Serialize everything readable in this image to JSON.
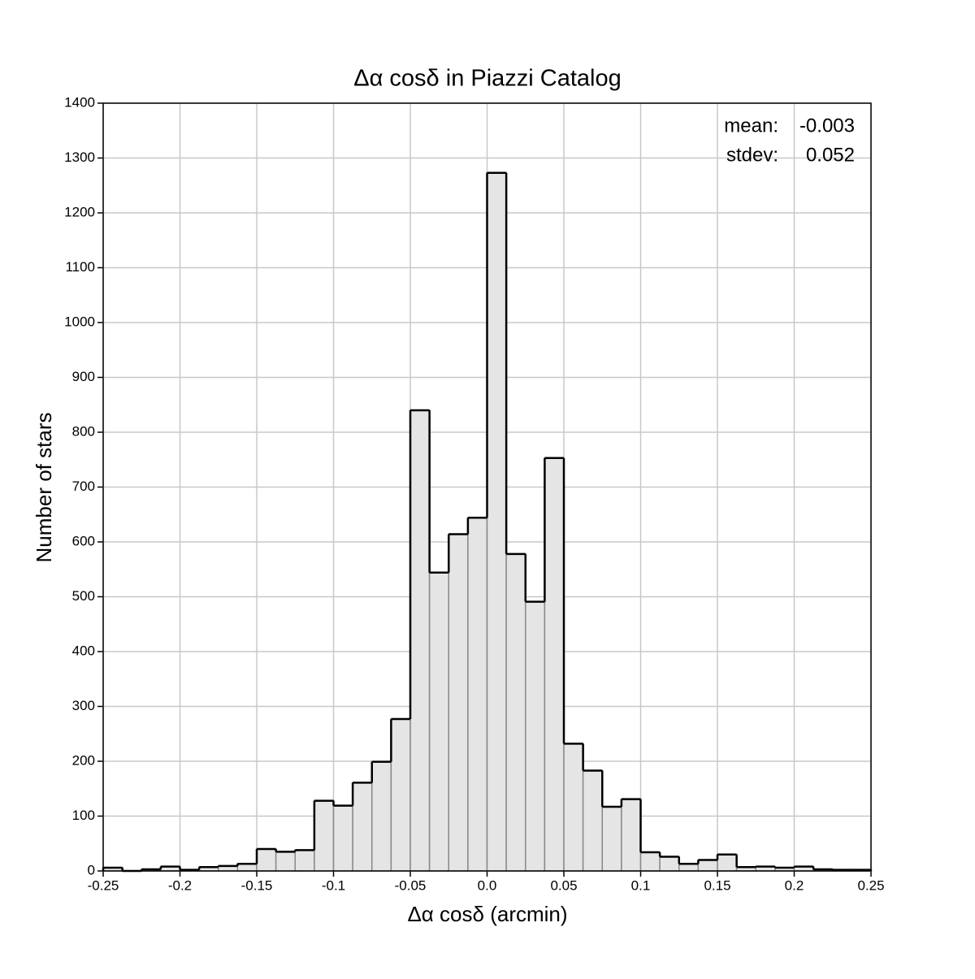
{
  "chart_data": {
    "type": "histogram",
    "title": "Δα cosδ in Piazzi Catalog",
    "x_label": "Δα cosδ (arcmin)",
    "y_label": "Number of stars",
    "bins": [
      -0.25,
      -0.2375,
      -0.225,
      -0.2125,
      -0.2,
      -0.1875,
      -0.175,
      -0.1625,
      -0.15,
      -0.1375,
      -0.125,
      -0.1125,
      -0.1,
      -0.0875,
      -0.075,
      -0.0625,
      -0.05,
      -0.0375,
      -0.025,
      -0.0125,
      0,
      0.0125,
      0.025,
      0.0375,
      0.05,
      0.0625,
      0.075,
      0.0875,
      0.1,
      0.1125,
      0.125,
      0.1375,
      0.15,
      0.1625,
      0.175,
      0.1875,
      0.2,
      0.2125,
      0.225,
      0.2375,
      0.25
    ],
    "values": [
      6,
      0,
      3,
      8,
      2,
      7,
      9,
      13,
      40,
      35,
      38,
      128,
      119,
      161,
      199,
      277,
      840,
      544,
      614,
      644,
      1273,
      578,
      491,
      753,
      232,
      183,
      117,
      131,
      34,
      26,
      13,
      20,
      30,
      7,
      8,
      6,
      8,
      3,
      2,
      2
    ],
    "color": "#e5e5e5",
    "xlim": [
      -0.25,
      0.25
    ],
    "xticks": [
      -0.25,
      -0.2,
      -0.15,
      -0.1,
      -0.05,
      {
        "value": 0,
        "label": "0.0"
      },
      0.05,
      0.1,
      0.15,
      0.2,
      0.25
    ],
    "ylim": [
      0,
      1400
    ],
    "yticks": [
      0,
      100,
      200,
      300,
      400,
      500,
      600,
      700,
      800,
      900,
      1000,
      1100,
      1200,
      1300,
      1400
    ],
    "grid": true,
    "stats": [
      {
        "label": "mean:",
        "value": -0.003
      },
      {
        "label": "stdev:",
        "value": 0.052
      }
    ]
  }
}
